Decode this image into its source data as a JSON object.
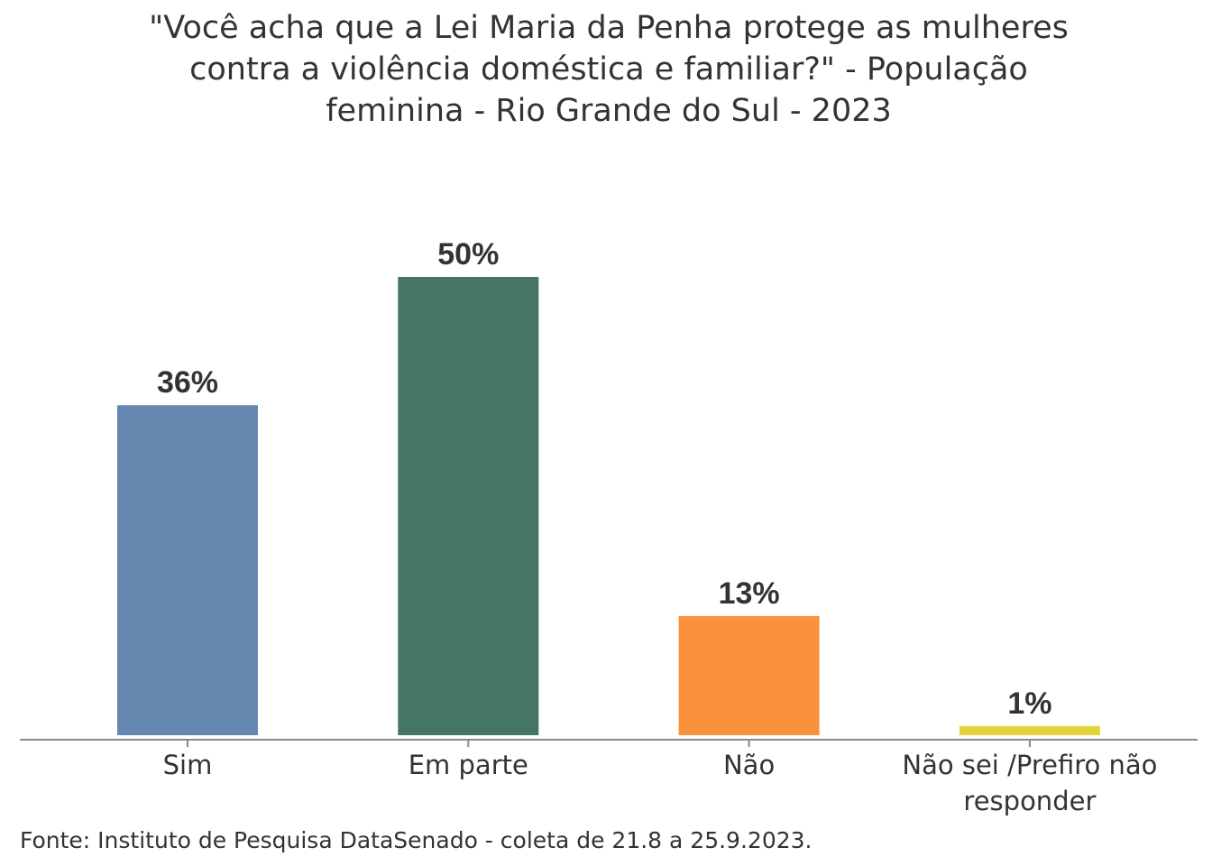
{
  "chart_data": {
    "type": "bar",
    "title_lines": [
      "\"Você acha que a Lei Maria da Penha protege as mulheres",
      "contra a violência doméstica e familiar?\" - População",
      "feminina - Rio Grande do Sul - 2023"
    ],
    "categories": [
      [
        "Sim"
      ],
      [
        "Em parte"
      ],
      [
        "Não"
      ],
      [
        "Não sei /Prefiro não",
        "responder"
      ]
    ],
    "values": [
      36,
      50,
      13,
      1
    ],
    "value_labels": [
      "36%",
      "50%",
      "13%",
      "1%"
    ],
    "colors": [
      "#6688b0",
      "#457563",
      "#fa913b",
      "#e3d43a"
    ],
    "ylim": [
      0,
      50
    ],
    "xlabel": "",
    "ylabel": "",
    "grid": false,
    "source": "Fonte: Instituto de Pesquisa DataSenado - coleta de 21.8 a 25.9.2023."
  }
}
